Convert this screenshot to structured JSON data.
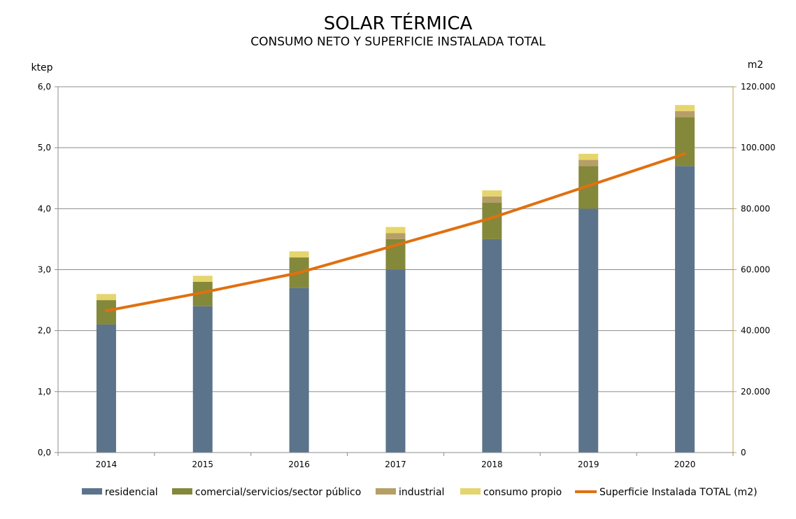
{
  "chart_data": {
    "type": "bar",
    "title": "SOLAR TÉRMICA",
    "subtitle": "CONSUMO NETO Y SUPERFICIE INSTALADA TOTAL",
    "ylabel_left": "ktep",
    "ylabel_right": "m2",
    "categories": [
      "2014",
      "2015",
      "2016",
      "2017",
      "2018",
      "2019",
      "2020"
    ],
    "ylim_left": [
      0,
      6
    ],
    "yticks_left": [
      "0,0",
      "1,0",
      "2,0",
      "3,0",
      "4,0",
      "5,0",
      "6,0"
    ],
    "ylim_right": [
      0,
      120000
    ],
    "yticks_right": [
      "0",
      "20.000",
      "40.000",
      "60.000",
      "80.000",
      "100.000",
      "120.000"
    ],
    "grid": true,
    "legend_position": "bottom",
    "series": [
      {
        "name": "residencial",
        "kind": "bar",
        "color": "#5b748b",
        "values": [
          2.1,
          2.4,
          2.7,
          3.0,
          3.5,
          4.0,
          4.7
        ]
      },
      {
        "name": "comercial/servicios/sector público",
        "kind": "bar",
        "color": "#84883a",
        "values": [
          0.4,
          0.4,
          0.5,
          0.5,
          0.6,
          0.7,
          0.8
        ]
      },
      {
        "name": "industrial",
        "kind": "bar",
        "color": "#b59f67",
        "values": [
          0.0,
          0.0,
          0.0,
          0.1,
          0.1,
          0.1,
          0.1
        ]
      },
      {
        "name": "consumo propio",
        "kind": "bar",
        "color": "#e5d56c",
        "values": [
          0.1,
          0.1,
          0.1,
          0.1,
          0.1,
          0.1,
          0.1
        ]
      },
      {
        "name": "Superficie Instalada TOTAL (m2)",
        "kind": "line",
        "axis": "right",
        "color": "#e07010",
        "values": [
          46500,
          52500,
          59000,
          68000,
          77000,
          87500,
          98000
        ]
      }
    ]
  }
}
